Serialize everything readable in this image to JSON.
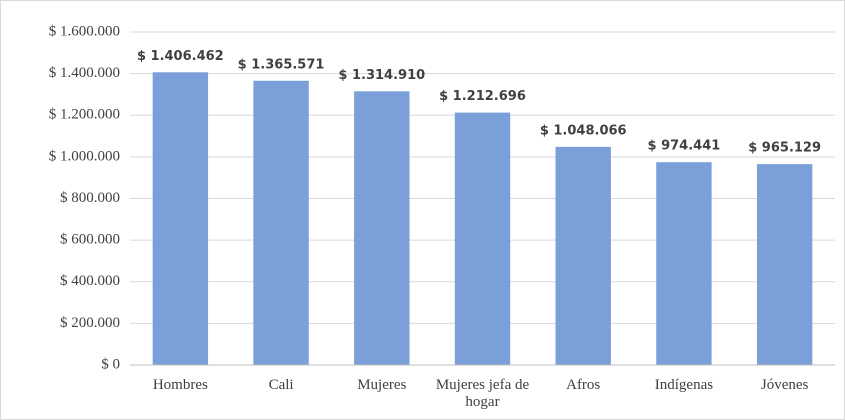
{
  "chart_data": {
    "type": "bar",
    "categories": [
      "Hombres",
      "Cali",
      "Mujeres",
      "Mujeres jefa de hogar",
      "Afros",
      "Indígenas",
      "Jóvenes"
    ],
    "values": [
      1406462,
      1365571,
      1314910,
      1212696,
      1048066,
      974441,
      965129
    ],
    "value_labels": [
      "$ 1.406.462",
      "$ 1.365.571",
      "$ 1.314.910",
      "$ 1.212.696",
      "$ 1.048.066",
      "$ 974.441",
      "$ 965.129"
    ],
    "color": "#7b9fd8",
    "ylim": [
      0,
      1600000
    ],
    "yticks": [
      {
        "value": 0,
        "label": "$ 0"
      },
      {
        "value": 200000,
        "label": "$ 200.000"
      },
      {
        "value": 400000,
        "label": "$ 400.000"
      },
      {
        "value": 600000,
        "label": "$ 600.000"
      },
      {
        "value": 800000,
        "label": "$ 800.000"
      },
      {
        "value": 1000000,
        "label": "$ 1.000.000"
      },
      {
        "value": 1200000,
        "label": "$ 1.200.000"
      },
      {
        "value": 1400000,
        "label": "$ 1.400.000"
      },
      {
        "value": 1600000,
        "label": "$ 1.600.000"
      }
    ],
    "grid": true
  }
}
